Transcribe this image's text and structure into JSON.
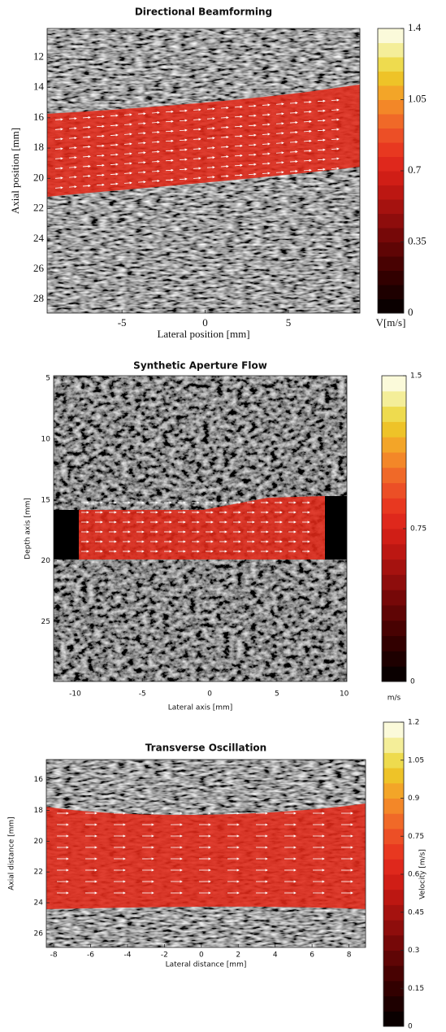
{
  "chart_data": [
    {
      "type": "image",
      "title": "Directional Beamforming",
      "xlabel": "Lateral position [mm]",
      "ylabel": "Axial position [mm]",
      "xlim": [
        -9.5,
        9.3
      ],
      "xticks": [
        -5,
        0,
        5
      ],
      "ylim": [
        10.1,
        28.9
      ],
      "yticks": [
        12,
        14,
        16,
        18,
        20,
        22,
        24,
        26,
        28
      ],
      "clim": [
        0,
        1.4
      ],
      "cticks": [
        0,
        0.35,
        0.7,
        1.05,
        1.4
      ],
      "clabel": "V[m/s]"
    },
    {
      "type": "image",
      "title": "Synthetic Aperture Flow",
      "xlabel": "Lateral axis [mm]",
      "ylabel": "Depth axis [mm]",
      "xlim": [
        -11.6,
        10.2
      ],
      "xticks": [
        -10,
        -5,
        0,
        5,
        10
      ],
      "ylim": [
        4.8,
        29.9
      ],
      "yticks": [
        5,
        10,
        15,
        20,
        25
      ],
      "clim": [
        0,
        1.5
      ],
      "cticks": [
        0,
        0.75,
        1.5
      ],
      "clabel": "m/s"
    },
    {
      "type": "image",
      "title": "Transverse Oscillation",
      "xlabel": "Lateral distance [mm]",
      "ylabel": "Axial distance [mm]",
      "xlim": [
        -8.4,
        8.9
      ],
      "xticks": [
        -8,
        -6,
        -4,
        -2,
        0,
        2,
        4,
        6,
        8
      ],
      "ylim": [
        14.7,
        26.9
      ],
      "yticks": [
        16,
        18,
        20,
        22,
        24,
        26
      ],
      "clim": [
        0,
        1.2
      ],
      "cticks": [
        0,
        0.15,
        0.3,
        0.45,
        0.6,
        0.75,
        0.9,
        1.05,
        1.2
      ],
      "clabel": "Velocity [m/s]"
    }
  ]
}
